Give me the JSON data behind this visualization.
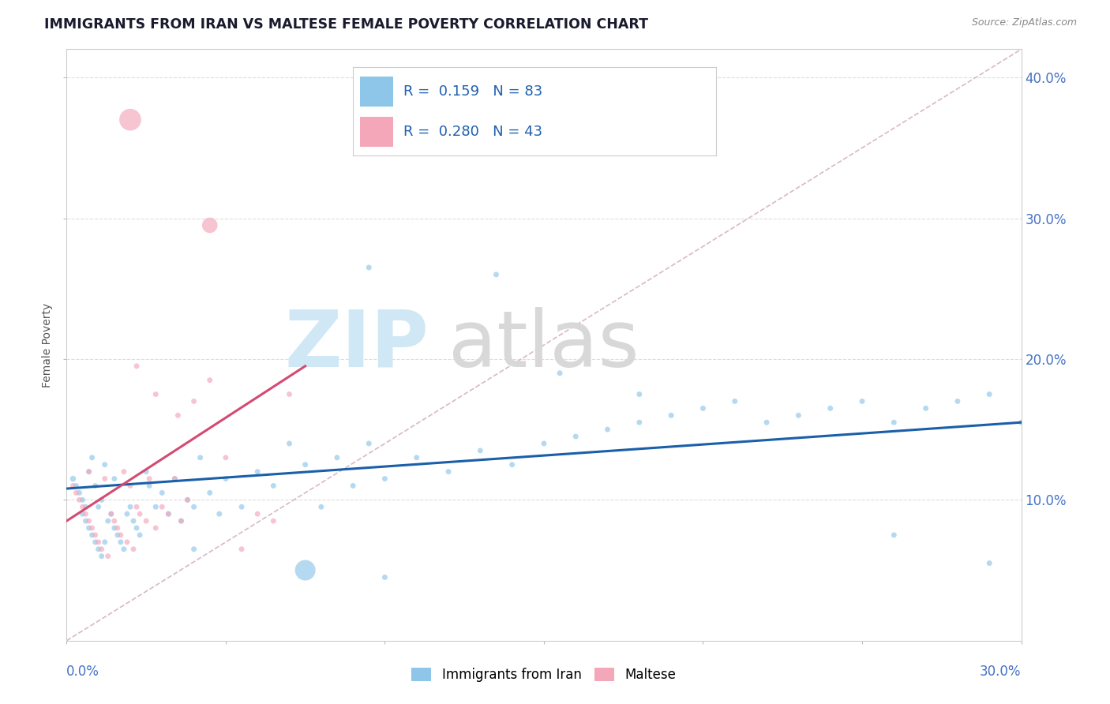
{
  "title": "IMMIGRANTS FROM IRAN VS MALTESE FEMALE POVERTY CORRELATION CHART",
  "source": "Source: ZipAtlas.com",
  "ylabel": "Female Poverty",
  "legend_label1": "Immigrants from Iran",
  "legend_label2": "Maltese",
  "R1": 0.159,
  "N1": 83,
  "R2": 0.28,
  "N2": 43,
  "xmin": 0.0,
  "xmax": 0.3,
  "ymin": 0.0,
  "ymax": 0.42,
  "yticks": [
    0.1,
    0.2,
    0.3,
    0.4
  ],
  "color_blue": "#8dc6e8",
  "color_pink": "#f4a7b9",
  "color_blue_line": "#1a5fa8",
  "color_pink_line": "#d44a72",
  "color_diag": "#d8b8c8",
  "blue_line_x0": 0.0,
  "blue_line_y0": 0.108,
  "blue_line_x1": 0.3,
  "blue_line_y1": 0.155,
  "pink_line_x0": 0.0,
  "pink_line_y0": 0.085,
  "pink_line_x1": 0.075,
  "pink_line_y1": 0.195,
  "blue_x": [
    0.002,
    0.003,
    0.004,
    0.005,
    0.005,
    0.006,
    0.006,
    0.007,
    0.007,
    0.008,
    0.008,
    0.009,
    0.009,
    0.01,
    0.01,
    0.011,
    0.011,
    0.012,
    0.012,
    0.013,
    0.014,
    0.015,
    0.015,
    0.016,
    0.017,
    0.018,
    0.019,
    0.02,
    0.021,
    0.022,
    0.023,
    0.025,
    0.026,
    0.028,
    0.03,
    0.032,
    0.034,
    0.036,
    0.038,
    0.04,
    0.042,
    0.045,
    0.048,
    0.05,
    0.055,
    0.06,
    0.065,
    0.07,
    0.075,
    0.08,
    0.085,
    0.09,
    0.095,
    0.1,
    0.11,
    0.12,
    0.13,
    0.14,
    0.15,
    0.16,
    0.17,
    0.18,
    0.19,
    0.2,
    0.21,
    0.22,
    0.23,
    0.24,
    0.25,
    0.26,
    0.27,
    0.28,
    0.29,
    0.3,
    0.095,
    0.155,
    0.26,
    0.29,
    0.135,
    0.18,
    0.04,
    0.075,
    0.1
  ],
  "blue_y": [
    0.115,
    0.11,
    0.105,
    0.1,
    0.09,
    0.095,
    0.085,
    0.08,
    0.12,
    0.075,
    0.13,
    0.07,
    0.11,
    0.065,
    0.095,
    0.06,
    0.1,
    0.125,
    0.07,
    0.085,
    0.09,
    0.08,
    0.115,
    0.075,
    0.07,
    0.065,
    0.09,
    0.095,
    0.085,
    0.08,
    0.075,
    0.12,
    0.11,
    0.095,
    0.105,
    0.09,
    0.115,
    0.085,
    0.1,
    0.095,
    0.13,
    0.105,
    0.09,
    0.115,
    0.095,
    0.12,
    0.11,
    0.14,
    0.125,
    0.095,
    0.13,
    0.11,
    0.14,
    0.115,
    0.13,
    0.12,
    0.135,
    0.125,
    0.14,
    0.145,
    0.15,
    0.155,
    0.16,
    0.165,
    0.17,
    0.155,
    0.16,
    0.165,
    0.17,
    0.155,
    0.165,
    0.17,
    0.175,
    0.155,
    0.265,
    0.19,
    0.075,
    0.055,
    0.26,
    0.175,
    0.065,
    0.05,
    0.045
  ],
  "blue_s": [
    30,
    25,
    25,
    25,
    25,
    25,
    25,
    25,
    25,
    25,
    25,
    25,
    25,
    25,
    25,
    25,
    25,
    25,
    25,
    25,
    25,
    25,
    25,
    25,
    25,
    25,
    25,
    25,
    25,
    25,
    25,
    25,
    25,
    25,
    25,
    25,
    25,
    25,
    25,
    25,
    25,
    25,
    25,
    25,
    25,
    25,
    25,
    25,
    25,
    25,
    25,
    25,
    25,
    25,
    25,
    25,
    25,
    25,
    25,
    25,
    25,
    25,
    25,
    25,
    25,
    25,
    25,
    25,
    25,
    25,
    25,
    25,
    25,
    25,
    25,
    25,
    25,
    25,
    25,
    25,
    25,
    350,
    25
  ],
  "pink_x": [
    0.002,
    0.003,
    0.004,
    0.005,
    0.006,
    0.007,
    0.007,
    0.008,
    0.009,
    0.01,
    0.011,
    0.012,
    0.013,
    0.014,
    0.015,
    0.016,
    0.017,
    0.018,
    0.019,
    0.02,
    0.021,
    0.022,
    0.023,
    0.025,
    0.026,
    0.028,
    0.03,
    0.032,
    0.034,
    0.036,
    0.038,
    0.04,
    0.045,
    0.05,
    0.055,
    0.06,
    0.065,
    0.07,
    0.022,
    0.028,
    0.035,
    0.02,
    0.045
  ],
  "pink_y": [
    0.11,
    0.105,
    0.1,
    0.095,
    0.09,
    0.085,
    0.12,
    0.08,
    0.075,
    0.07,
    0.065,
    0.115,
    0.06,
    0.09,
    0.085,
    0.08,
    0.075,
    0.12,
    0.07,
    0.11,
    0.065,
    0.095,
    0.09,
    0.085,
    0.115,
    0.08,
    0.095,
    0.09,
    0.115,
    0.085,
    0.1,
    0.17,
    0.185,
    0.13,
    0.065,
    0.09,
    0.085,
    0.175,
    0.195,
    0.175,
    0.16,
    0.37,
    0.295
  ],
  "pink_s": [
    25,
    25,
    25,
    25,
    25,
    25,
    25,
    25,
    25,
    25,
    25,
    25,
    25,
    25,
    25,
    25,
    25,
    25,
    25,
    25,
    25,
    25,
    25,
    25,
    25,
    25,
    25,
    25,
    25,
    25,
    25,
    25,
    25,
    25,
    25,
    25,
    25,
    25,
    25,
    25,
    25,
    400,
    200
  ]
}
